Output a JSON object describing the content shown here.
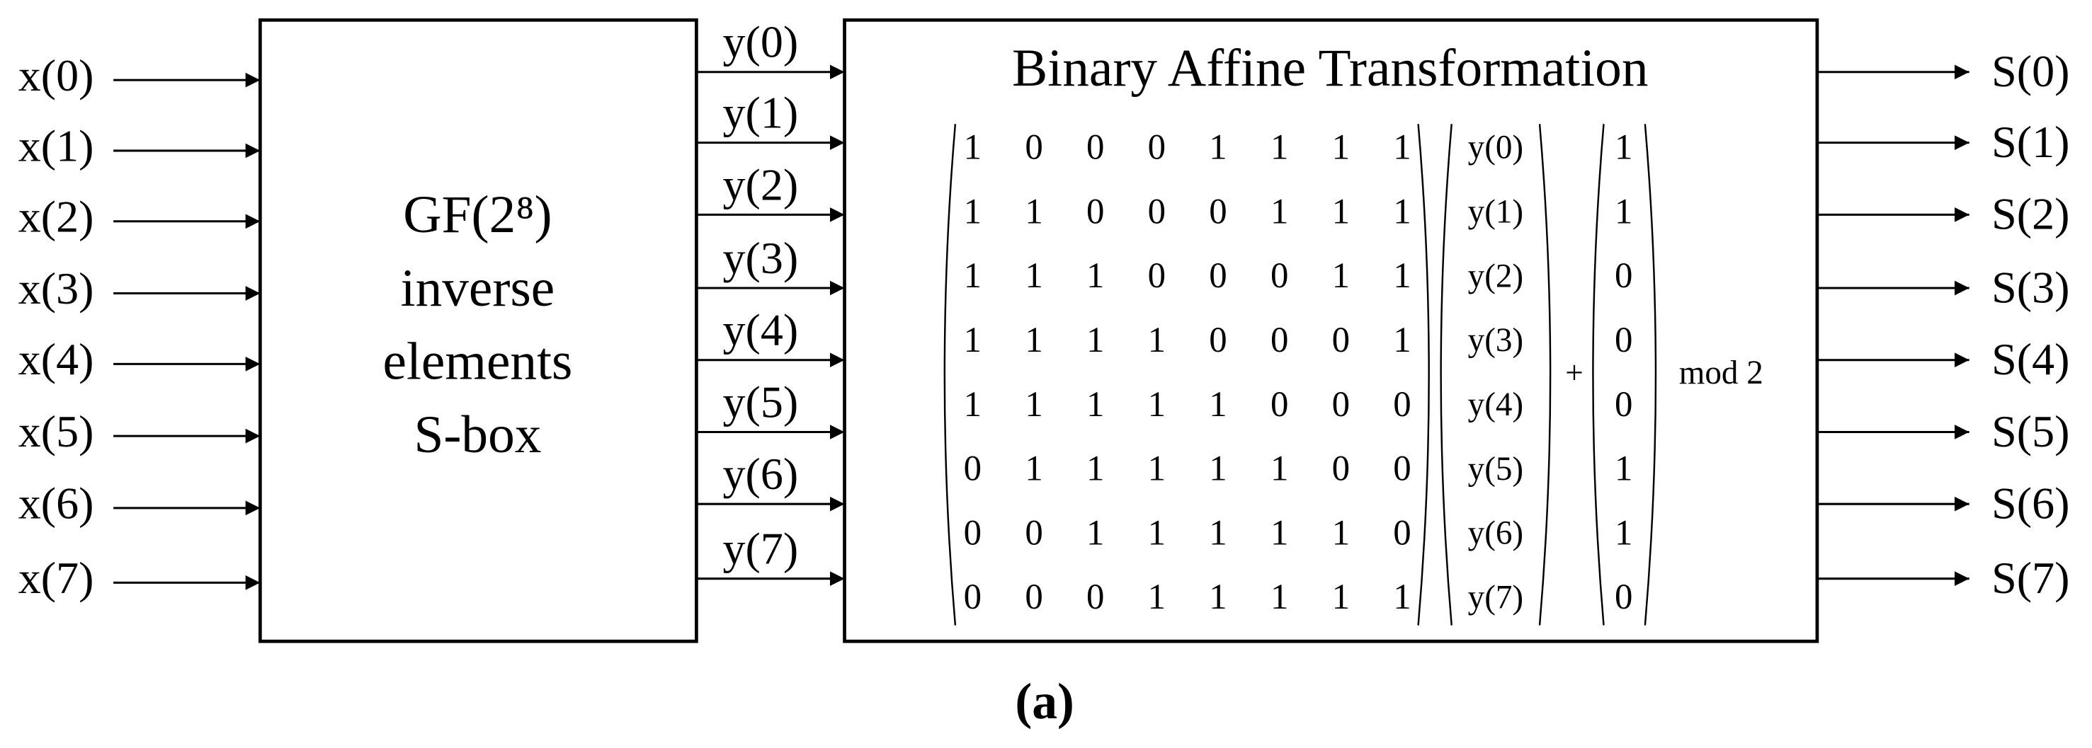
{
  "inputs": [
    "x(0)",
    "x(1)",
    "x(2)",
    "x(3)",
    "x(4)",
    "x(5)",
    "x(6)",
    "x(7)"
  ],
  "sbox": {
    "lines": [
      "GF(2⁸)",
      "inverse",
      "elements",
      "S-box"
    ]
  },
  "intermediates": [
    "y(0)",
    "y(1)",
    "y(2)",
    "y(3)",
    "y(4)",
    "y(5)",
    "y(6)",
    "y(7)"
  ],
  "affine": {
    "title": "Binary Affine Transformation",
    "matrix": [
      [
        1,
        0,
        0,
        0,
        1,
        1,
        1,
        1
      ],
      [
        1,
        1,
        0,
        0,
        0,
        1,
        1,
        1
      ],
      [
        1,
        1,
        1,
        0,
        0,
        0,
        1,
        1
      ],
      [
        1,
        1,
        1,
        1,
        0,
        0,
        0,
        1
      ],
      [
        1,
        1,
        1,
        1,
        1,
        0,
        0,
        0
      ],
      [
        0,
        1,
        1,
        1,
        1,
        1,
        0,
        0
      ],
      [
        0,
        0,
        1,
        1,
        1,
        1,
        1,
        0
      ],
      [
        0,
        0,
        0,
        1,
        1,
        1,
        1,
        1
      ]
    ],
    "vector": [
      "y(0)",
      "y(1)",
      "y(2)",
      "y(3)",
      "y(4)",
      "y(5)",
      "y(6)",
      "y(7)"
    ],
    "plus": "+",
    "constant": [
      1,
      1,
      0,
      0,
      0,
      1,
      1,
      0
    ],
    "modulus": "mod 2"
  },
  "outputs": [
    "S(0)",
    "S(1)",
    "S(2)",
    "S(3)",
    "S(4)",
    "S(5)",
    "S(6)",
    "S(7)"
  ],
  "caption": "(a)"
}
